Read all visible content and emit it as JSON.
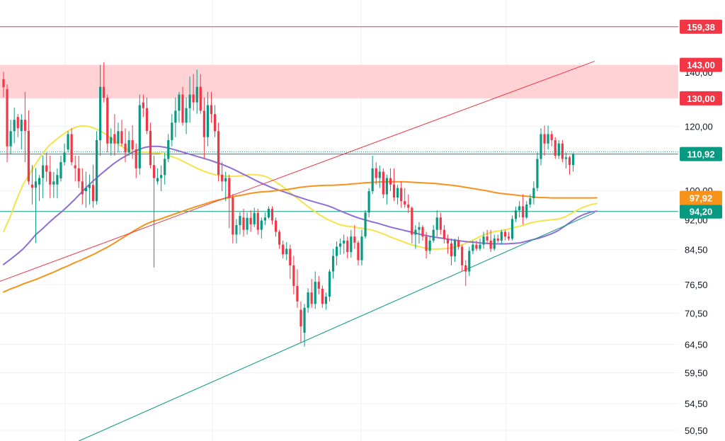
{
  "chart_data": {
    "type": "candlestick",
    "title": "",
    "xlabel": "",
    "ylabel": "",
    "y_scale": "log",
    "ylim": [
      49,
      172
    ],
    "grid": true,
    "price_axis_ticks": [
      "140,00",
      "120,00",
      "100,00",
      "92,00",
      "84,50",
      "76,50",
      "70,50",
      "64,50",
      "59,50",
      "54,50",
      "50,50"
    ],
    "horizontal_levels": [
      {
        "label": "159,38",
        "value": 159.38,
        "color": "#f23645"
      },
      {
        "label": "143,00",
        "value": 143.0,
        "color": "#f23645"
      },
      {
        "label": "130,00",
        "value": 130.0,
        "color": "#f23645"
      },
      {
        "label": "94,20",
        "value": 94.2,
        "color": "#089981"
      }
    ],
    "resistance_zone": {
      "from": 130.0,
      "to": 143.0,
      "color": "#ffcdd2"
    },
    "last_price": {
      "label": "110,92",
      "value": 110.92,
      "color": "#089981"
    },
    "moving_average_tag": {
      "label": "97,92",
      "value": 97.92,
      "color": "#f7931a"
    },
    "candles": [
      [
        137.3,
        140.1,
        130.4,
        134.2
      ],
      [
        133.4,
        135.3,
        108.4,
        113.4
      ],
      [
        113.4,
        122.3,
        110.9,
        118.4
      ],
      [
        118.4,
        126.6,
        114.4,
        122.3
      ],
      [
        123.3,
        124.3,
        116.4,
        119.4
      ],
      [
        118.4,
        124.3,
        112.4,
        122.3
      ],
      [
        122.3,
        132.4,
        108.4,
        118.5
      ],
      [
        118.5,
        125.6,
        101.7,
        102.6
      ],
      [
        101.7,
        107.5,
        96.1,
        100.8
      ],
      [
        100.8,
        106.6,
        86.1,
        102.6
      ],
      [
        101.7,
        104.5,
        97.0,
        103.6
      ],
      [
        103.6,
        110.4,
        97.8,
        107.4
      ],
      [
        107.4,
        111.4,
        102.5,
        105.5
      ],
      [
        105.5,
        110.4,
        97.8,
        101.7
      ],
      [
        101.7,
        105.4,
        97.9,
        102.6
      ],
      [
        101.7,
        106.5,
        97.8,
        104.5
      ],
      [
        103.5,
        110.4,
        102.6,
        108.4
      ],
      [
        108.4,
        114.3,
        107.4,
        111.4
      ],
      [
        112.4,
        118.4,
        111.4,
        117.4
      ],
      [
        117.4,
        119.4,
        107.4,
        108.4
      ],
      [
        107.4,
        110.4,
        102.6,
        106.5
      ],
      [
        106.5,
        110.4,
        100.7,
        102.6
      ],
      [
        102.6,
        106.5,
        96.1,
        98.9
      ],
      [
        99.8,
        105.5,
        95.2,
        100.7
      ],
      [
        100.7,
        104.6,
        96.1,
        101.6
      ],
      [
        101.6,
        107.6,
        95.2,
        97.0
      ],
      [
        97.0,
        118.4,
        96.1,
        115.4
      ],
      [
        115.4,
        143.0,
        110.4,
        134.3
      ],
      [
        134.3,
        144.1,
        128.5,
        130.2
      ],
      [
        130.2,
        131.4,
        111.4,
        114.3
      ],
      [
        114.3,
        119.4,
        110.4,
        116.4
      ],
      [
        117.4,
        124.3,
        110.4,
        114.3
      ],
      [
        114.3,
        121.3,
        111.4,
        118.4
      ],
      [
        118.4,
        122.3,
        113.4,
        114.3
      ],
      [
        114.3,
        119.4,
        108.4,
        111.4
      ],
      [
        111.4,
        118.4,
        110.4,
        115.4
      ],
      [
        115.4,
        120.4,
        109.4,
        112.4
      ],
      [
        112.4,
        114.3,
        103.6,
        106.5
      ],
      [
        106.5,
        131.4,
        104.6,
        127.5
      ],
      [
        128.5,
        131.4,
        123.3,
        126.4
      ],
      [
        126.4,
        130.3,
        117.4,
        118.5
      ],
      [
        118.5,
        121.3,
        106.5,
        107.5
      ],
      [
        107.5,
        110.4,
        80.3,
        103.6
      ],
      [
        102.6,
        106.5,
        101.7,
        103.6
      ],
      [
        103.6,
        107.4,
        99.8,
        104.5
      ],
      [
        104.5,
        111.4,
        101.7,
        109.4
      ],
      [
        109.4,
        117.4,
        108.4,
        115.4
      ],
      [
        115.4,
        124.3,
        113.4,
        121.3
      ],
      [
        121.3,
        130.3,
        116.4,
        125.5
      ],
      [
        125.5,
        132.4,
        121.3,
        131.4
      ],
      [
        131.4,
        134.3,
        120.3,
        121.3
      ],
      [
        121.3,
        130.3,
        117.4,
        126.4
      ],
      [
        126.4,
        138.3,
        121.3,
        131.4
      ],
      [
        131.4,
        139.3,
        125.5,
        128.5
      ],
      [
        128.5,
        141.1,
        124.4,
        134.3
      ],
      [
        134.3,
        139.3,
        124.4,
        125.5
      ],
      [
        125.5,
        130.3,
        109.4,
        116.4
      ],
      [
        116.4,
        132.4,
        113.4,
        127.5
      ],
      [
        127.5,
        132.4,
        121.3,
        124.3
      ],
      [
        124.3,
        127.5,
        116.4,
        118.4
      ],
      [
        118.4,
        121.3,
        102.6,
        104.6
      ],
      [
        104.6,
        108.4,
        99.8,
        102.6
      ],
      [
        102.6,
        105.5,
        97.0,
        103.6
      ],
      [
        103.6,
        104.6,
        89.8,
        98.0
      ],
      [
        98.0,
        99.0,
        86.0,
        88.2
      ],
      [
        88.2,
        92.2,
        86.0,
        90.6
      ],
      [
        90.6,
        94.0,
        88.2,
        93.0
      ],
      [
        92.6,
        94.9,
        87.7,
        89.4
      ],
      [
        89.4,
        93.9,
        88.2,
        92.5
      ],
      [
        92.5,
        94.5,
        88.9,
        90.8
      ],
      [
        90.8,
        95.2,
        90.1,
        93.8
      ],
      [
        93.8,
        94.9,
        88.2,
        89.4
      ],
      [
        89.4,
        92.6,
        87.2,
        91.8
      ],
      [
        91.8,
        93.9,
        90.6,
        92.6
      ],
      [
        92.6,
        95.6,
        92.2,
        94.9
      ],
      [
        94.9,
        95.6,
        90.8,
        91.8
      ],
      [
        91.8,
        92.6,
        87.7,
        88.9
      ],
      [
        88.9,
        89.4,
        84.7,
        85.7
      ],
      [
        85.7,
        86.7,
        82.4,
        83.4
      ],
      [
        83.4,
        86.3,
        82.0,
        84.7
      ],
      [
        84.7,
        85.7,
        77.7,
        80.8
      ],
      [
        80.8,
        83.0,
        74.4,
        76.2
      ],
      [
        76.2,
        79.9,
        71.6,
        72.9
      ],
      [
        71.2,
        72.9,
        64.9,
        67.9
      ],
      [
        66.7,
        72.4,
        64.1,
        71.6
      ],
      [
        71.6,
        75.7,
        70.6,
        74.8
      ],
      [
        74.8,
        77.7,
        71.6,
        72.4
      ],
      [
        72.4,
        79.4,
        71.4,
        77.1
      ],
      [
        77.1,
        78.4,
        74.4,
        75.6
      ],
      [
        75.6,
        76.3,
        71.6,
        72.4
      ],
      [
        72.4,
        74.8,
        71.2,
        73.9
      ],
      [
        73.9,
        79.9,
        72.9,
        79.4
      ],
      [
        79.4,
        84.7,
        77.8,
        83.0
      ],
      [
        83.0,
        86.5,
        80.8,
        85.2
      ],
      [
        85.2,
        87.2,
        83.3,
        86.0
      ],
      [
        86.0,
        88.2,
        83.5,
        86.7
      ],
      [
        86.7,
        87.7,
        82.4,
        83.9
      ],
      [
        83.9,
        89.4,
        82.6,
        87.7
      ],
      [
        87.7,
        90.6,
        84.7,
        86.2
      ],
      [
        86.2,
        86.7,
        80.8,
        82.0
      ],
      [
        82.0,
        89.4,
        80.8,
        87.7
      ],
      [
        87.7,
        94.5,
        87.2,
        93.9
      ],
      [
        93.9,
        100.7,
        92.6,
        99.8
      ],
      [
        99.8,
        110.4,
        99.0,
        106.5
      ],
      [
        106.5,
        108.4,
        101.7,
        103.6
      ],
      [
        103.6,
        107.4,
        100.7,
        105.5
      ],
      [
        105.5,
        106.5,
        97.8,
        98.9
      ],
      [
        98.9,
        104.6,
        96.1,
        103.6
      ],
      [
        103.6,
        106.5,
        99.8,
        101.7
      ],
      [
        101.7,
        106.5,
        97.0,
        98.0
      ],
      [
        98.0,
        101.6,
        96.1,
        100.7
      ],
      [
        100.7,
        102.6,
        95.2,
        97.0
      ],
      [
        97.0,
        100.7,
        95.2,
        96.1
      ],
      [
        96.1,
        98.9,
        93.8,
        95.2
      ],
      [
        95.2,
        95.6,
        86.0,
        88.2
      ],
      [
        88.2,
        90.6,
        84.7,
        89.4
      ],
      [
        89.4,
        91.4,
        86.0,
        90.1
      ],
      [
        90.1,
        90.6,
        86.7,
        87.7
      ],
      [
        87.7,
        88.9,
        82.4,
        84.2
      ],
      [
        84.2,
        87.7,
        83.4,
        86.7
      ],
      [
        86.7,
        90.6,
        86.2,
        89.4
      ],
      [
        89.4,
        94.5,
        87.7,
        92.6
      ],
      [
        92.6,
        93.9,
        88.2,
        89.4
      ],
      [
        89.4,
        90.6,
        86.0,
        87.2
      ],
      [
        87.2,
        88.2,
        83.5,
        86.0
      ],
      [
        86.0,
        87.2,
        80.8,
        82.9
      ],
      [
        82.9,
        87.2,
        81.6,
        86.7
      ],
      [
        86.7,
        87.7,
        84.5,
        85.2
      ],
      [
        85.2,
        85.7,
        79.4,
        80.8
      ],
      [
        80.8,
        82.0,
        76.2,
        79.4
      ],
      [
        79.4,
        85.2,
        78.4,
        84.2
      ],
      [
        84.2,
        86.7,
        83.4,
        85.7
      ],
      [
        85.7,
        86.7,
        84.2,
        84.7
      ],
      [
        84.7,
        87.2,
        84.2,
        85.7
      ],
      [
        85.7,
        88.9,
        84.7,
        87.7
      ],
      [
        87.7,
        89.4,
        86.0,
        86.7
      ],
      [
        86.7,
        89.4,
        83.9,
        84.7
      ],
      [
        84.7,
        88.2,
        84.2,
        87.2
      ],
      [
        87.2,
        88.2,
        86.2,
        86.7
      ],
      [
        86.7,
        89.4,
        85.7,
        88.9
      ],
      [
        88.9,
        89.4,
        86.7,
        87.7
      ],
      [
        87.7,
        88.9,
        86.7,
        87.2
      ],
      [
        87.2,
        93.1,
        86.7,
        92.2
      ],
      [
        92.2,
        95.5,
        91.4,
        94.5
      ],
      [
        94.5,
        97.0,
        92.6,
        95.6
      ],
      [
        95.6,
        98.9,
        90.8,
        92.6
      ],
      [
        92.6,
        97.0,
        92.2,
        96.1
      ],
      [
        96.1,
        98.9,
        95.2,
        97.8
      ],
      [
        97.8,
        102.6,
        96.1,
        100.7
      ],
      [
        100.7,
        111.4,
        99.8,
        109.4
      ],
      [
        109.4,
        119.4,
        107.4,
        117.4
      ],
      [
        117.4,
        120.3,
        110.4,
        114.3
      ],
      [
        114.3,
        120.3,
        112.4,
        117.4
      ],
      [
        117.4,
        118.5,
        113.4,
        115.4
      ],
      [
        115.4,
        116.4,
        109.4,
        110.4
      ],
      [
        110.4,
        115.4,
        109.4,
        114.3
      ],
      [
        114.3,
        115.4,
        108.4,
        109.4
      ],
      [
        109.4,
        111.4,
        106.5,
        109.9
      ],
      [
        109.9,
        110.4,
        104.6,
        107.5
      ],
      [
        107.5,
        111.4,
        105.5,
        110.9
      ]
    ],
    "series": [
      {
        "type": "candles",
        "up_color": "#089981",
        "down_color": "#f23645"
      },
      {
        "type": "moving-average",
        "color": "#f5e34a",
        "values": [
          89.0,
          92.6,
          97.3,
          101.6,
          104.7,
          107.9,
          110.9,
          113.5,
          115.3,
          117.0,
          118.5,
          119.6,
          120.2,
          120.1,
          119.5,
          118.5,
          117.2,
          115.6,
          113.8,
          112.5,
          111.6,
          111.5,
          111.5,
          111.4,
          111.3,
          110.9,
          110.2,
          109.5,
          108.5,
          107.5,
          106.5,
          105.7,
          105.0,
          104.5,
          104.2,
          104.1,
          104.1,
          104.3,
          104.6,
          104.6,
          104.4,
          103.8,
          102.7,
          101.5,
          100.1,
          98.6,
          97.2,
          95.8,
          94.5,
          93.3,
          92.3,
          91.5,
          90.8,
          90.4,
          90.2,
          89.9,
          89.7,
          89.4,
          88.9,
          88.3,
          87.6,
          87.0,
          86.4,
          85.8,
          85.4,
          85.0,
          84.7,
          84.6,
          84.7,
          84.8,
          85.1,
          85.6,
          86.3,
          87.0,
          87.8,
          88.4,
          88.9,
          89.2,
          89.5,
          89.9,
          90.3,
          90.8,
          91.3,
          91.6,
          91.8,
          92.0,
          92.2,
          92.7,
          93.6,
          94.6,
          95.4,
          96.0,
          96.4
        ]
      },
      {
        "type": "moving-average",
        "color": "#8e6fd6",
        "values": [
          81.0,
          82.1,
          83.3,
          84.6,
          86.3,
          88.2,
          89.6,
          91.2,
          92.7,
          94.1,
          95.7,
          97.4,
          99.3,
          101.2,
          102.9,
          104.6,
          106.2,
          107.8,
          109.2,
          110.4,
          111.5,
          112.4,
          113.1,
          113.4,
          113.4,
          113.1,
          112.6,
          112.0,
          111.4,
          110.8,
          110.2,
          109.6,
          109.0,
          108.3,
          107.6,
          106.8,
          105.9,
          104.9,
          104.0,
          103.0,
          102.1,
          101.3,
          100.5,
          99.9,
          99.3,
          98.6,
          98.0,
          97.4,
          96.9,
          96.4,
          95.9,
          95.3,
          94.5,
          93.8,
          93.1,
          92.5,
          92.0,
          91.5,
          91.1,
          90.6,
          90.1,
          89.7,
          89.3,
          88.9,
          88.5,
          88.1,
          87.8,
          87.5,
          87.3,
          87.0,
          86.8,
          86.6,
          86.4,
          86.3,
          86.1,
          86.0,
          85.9,
          85.9,
          85.9,
          86.0,
          86.1,
          86.5,
          86.9,
          87.3,
          87.8,
          88.4,
          89.2,
          90.3,
          91.5,
          92.6,
          93.4,
          94.0,
          94.3
        ]
      },
      {
        "type": "moving-average",
        "color": "#f7931a",
        "values": [
          74.9,
          75.5,
          76.0,
          76.6,
          77.1,
          77.6,
          78.2,
          78.8,
          79.4,
          80.1,
          80.7,
          81.4,
          82.0,
          82.7,
          83.4,
          84.2,
          85.0,
          85.9,
          86.9,
          87.9,
          88.9,
          89.9,
          90.8,
          91.5,
          92.0,
          92.6,
          93.2,
          93.8,
          94.4,
          95.0,
          95.6,
          96.1,
          96.7,
          97.2,
          97.6,
          98.0,
          98.4,
          98.7,
          99.1,
          99.4,
          99.6,
          99.7,
          99.9,
          100.1,
          100.3,
          100.6,
          100.9,
          101.1,
          101.3,
          101.4,
          101.5,
          101.5,
          101.6,
          101.7,
          101.9,
          102.0,
          102.2,
          102.3,
          102.4,
          102.5,
          102.5,
          102.5,
          102.5,
          102.4,
          102.3,
          102.2,
          102.1,
          102.0,
          101.8,
          101.6,
          101.4,
          101.1,
          100.8,
          100.5,
          100.2,
          99.9,
          99.5,
          99.2,
          99.0,
          98.8,
          98.6,
          98.4,
          98.2,
          98.0,
          98.0,
          97.9,
          97.9,
          97.9,
          97.9,
          97.9,
          97.9,
          97.9,
          97.92
        ]
      }
    ],
    "trendlines": [
      {
        "color": "#f23645",
        "from": {
          "candle": -1,
          "value": 77.2
        },
        "to": {
          "candle": 165,
          "value": 144.5
        }
      },
      {
        "color": "#089981",
        "from": {
          "candle": 21,
          "value": 49.0
        },
        "to": {
          "candle": 165,
          "value": 93.9
        }
      }
    ]
  }
}
